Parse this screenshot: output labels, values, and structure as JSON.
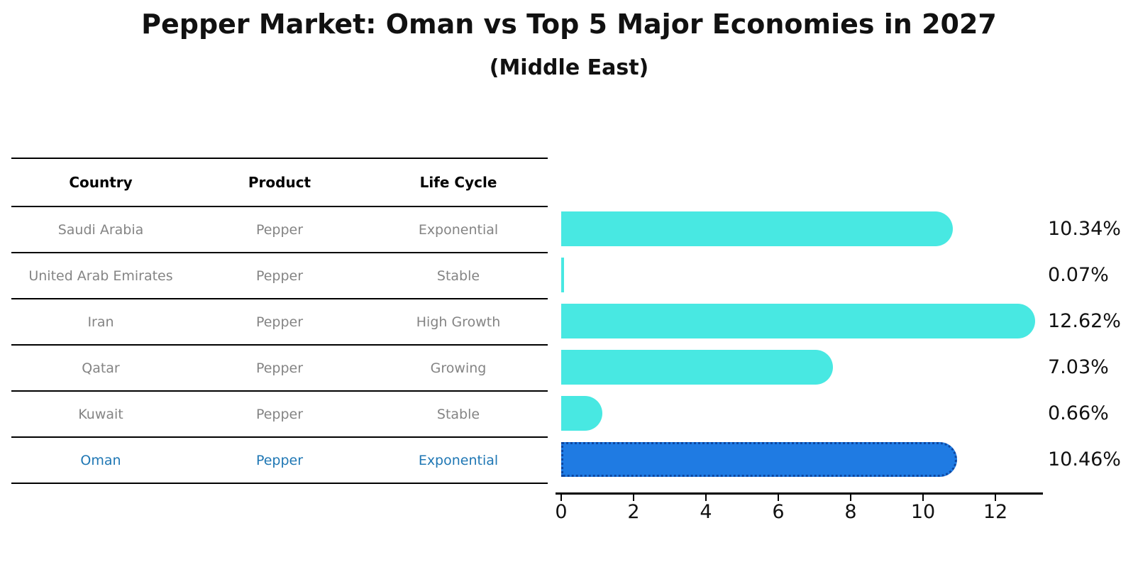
{
  "title": "Pepper Market: Oman vs Top 5 Major Economies in 2027",
  "subtitle": "(Middle East)",
  "colors": {
    "bar_default": "#48e8e2",
    "bar_highlight": "#1f7be3",
    "bar_highlight_border": "#0d47a1",
    "table_highlight_text": "#1f77b4",
    "table_text": "#848484",
    "axis": "#000000"
  },
  "table": {
    "headers": [
      "Country",
      "Product",
      "Life Cycle"
    ],
    "rows": [
      {
        "country": "Saudi Arabia",
        "product": "Pepper",
        "life_cycle": "Exponential",
        "highlight": false
      },
      {
        "country": "United Arab Emirates",
        "product": "Pepper",
        "life_cycle": "Stable",
        "highlight": false
      },
      {
        "country": "Iran",
        "product": "Pepper",
        "life_cycle": "High Growth",
        "highlight": false
      },
      {
        "country": "Qatar",
        "product": "Pepper",
        "life_cycle": "Growing",
        "highlight": false
      },
      {
        "country": "Kuwait",
        "product": "Pepper",
        "life_cycle": "Stable",
        "highlight": false
      },
      {
        "country": "Oman",
        "product": "Pepper",
        "life_cycle": "Exponential",
        "highlight": true
      }
    ]
  },
  "chart_data": {
    "type": "bar",
    "orientation": "horizontal",
    "title": "Pepper Market: Oman vs Top 5 Major Economies in 2027",
    "subtitle": "(Middle East)",
    "categories": [
      "Saudi Arabia",
      "United Arab Emirates",
      "Iran",
      "Qatar",
      "Kuwait",
      "Oman"
    ],
    "values": [
      10.34,
      0.07,
      12.62,
      7.03,
      0.66,
      10.46
    ],
    "value_labels": [
      "10.34%",
      "0.07%",
      "12.62%",
      "7.03%",
      "0.66%",
      "10.46%"
    ],
    "highlight_category": "Oman",
    "x_ticks": [
      0,
      2,
      4,
      6,
      8,
      10,
      12
    ],
    "xlim": [
      0,
      13.3
    ],
    "xlabel": "",
    "ylabel": "",
    "grid": false,
    "legend": false
  }
}
